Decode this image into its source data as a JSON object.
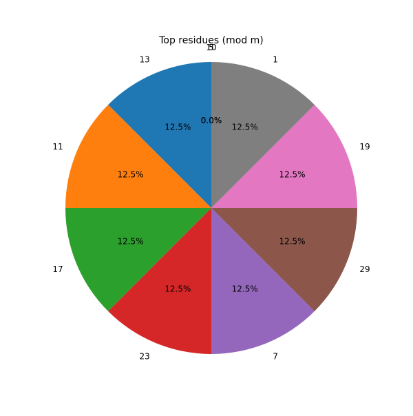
{
  "chart_data": {
    "type": "pie",
    "title": "Top residues (mod m)",
    "start_angle_deg": 90,
    "direction": "counterclockwise",
    "slices": [
      {
        "label": "13",
        "value": 1,
        "pct_label": "12.5%",
        "color": "#1f77b4"
      },
      {
        "label": "11",
        "value": 1,
        "pct_label": "12.5%",
        "color": "#ff7f0e"
      },
      {
        "label": "17",
        "value": 1,
        "pct_label": "12.5%",
        "color": "#2ca02c"
      },
      {
        "label": "23",
        "value": 1,
        "pct_label": "12.5%",
        "color": "#d62728"
      },
      {
        "label": "7",
        "value": 1,
        "pct_label": "12.5%",
        "color": "#9467bd"
      },
      {
        "label": "29",
        "value": 1,
        "pct_label": "12.5%",
        "color": "#8c564b"
      },
      {
        "label": "19",
        "value": 1,
        "pct_label": "12.5%",
        "color": "#e377c2"
      },
      {
        "label": "1",
        "value": 1,
        "pct_label": "12.5%",
        "color": "#7f7f7f"
      },
      {
        "label": "5",
        "value": 0,
        "pct_label": "0.0%",
        "color": "#bcbd22"
      },
      {
        "label": "10",
        "value": 0,
        "pct_label": "0.0%",
        "color": "#17becf"
      }
    ]
  }
}
